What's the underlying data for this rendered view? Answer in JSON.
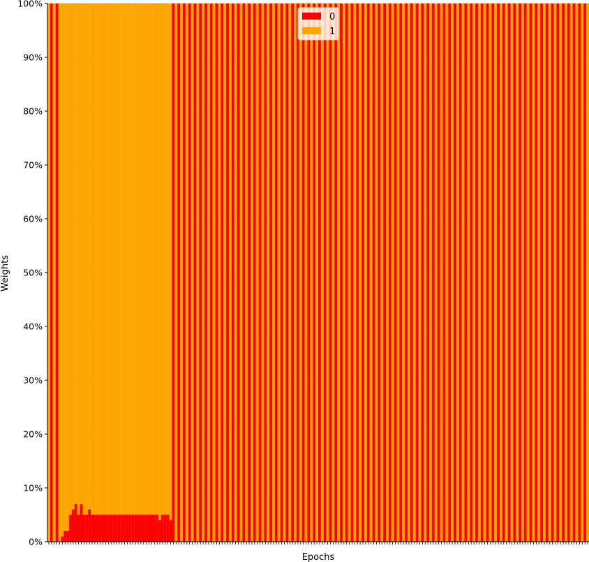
{
  "chart_data": {
    "type": "bar",
    "stacked": true,
    "title": "",
    "xlabel": "Epochs",
    "ylabel": "Weights",
    "ylim": [
      0,
      100
    ],
    "yticks": [
      "0%",
      "10%",
      "20%",
      "30%",
      "40%",
      "50%",
      "60%",
      "70%",
      "80%",
      "90%",
      "100%"
    ],
    "y_tick_values": [
      0,
      10,
      20,
      30,
      40,
      50,
      60,
      70,
      80,
      90,
      100
    ],
    "grid": "y-dashed",
    "legend_position": "top-center",
    "colors": {
      "0": "#ff0000",
      "1": "#ffa500"
    },
    "n_epochs": 200,
    "series": [
      {
        "name": "0",
        "color": "#ff0000",
        "segments": [
          {
            "epochs": [
              0,
              4
            ],
            "mode": "alternate",
            "value": 100,
            "start": "1"
          },
          {
            "epochs": [
              5,
              9
            ],
            "values": [
              1,
              2,
              2,
              5,
              6
            ]
          },
          {
            "epochs": [
              10,
              45
            ],
            "values": [
              7,
              5,
              7,
              5,
              5,
              6,
              5,
              5,
              5,
              5,
              5,
              5,
              5,
              5,
              5,
              5,
              5,
              5,
              5,
              5,
              5,
              5,
              5,
              5,
              5,
              5,
              5,
              5,
              5,
              5,
              5,
              4,
              5,
              5,
              5,
              4
            ]
          },
          {
            "epochs": [
              46,
              199
            ],
            "mode": "alternate",
            "value": 100,
            "start": "0"
          }
        ]
      },
      {
        "name": "1",
        "color": "#ffa500",
        "note_complement": "stack top = 100 - series 0"
      }
    ]
  }
}
